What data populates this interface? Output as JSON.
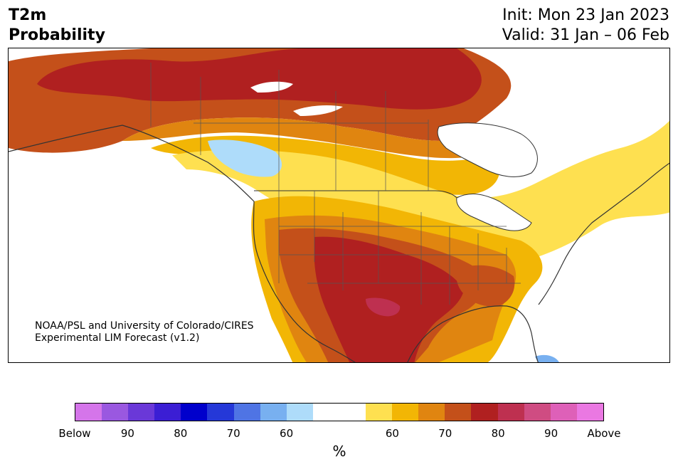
{
  "header": {
    "variable_line1": "T2m",
    "variable_line2": "Probability",
    "init": "Init: Mon 23 Jan 2023",
    "valid": "Valid: 31 Jan – 06 Feb"
  },
  "credit": {
    "line1": "NOAA/PSL and University of Colorado/CIRES",
    "line2": "Experimental LIM Forecast (v1.2)"
  },
  "colorbar": {
    "colors": [
      "#d575ea",
      "#9a58e0",
      "#6a38d8",
      "#3b1ed4",
      "#0000cc",
      "#2538d8",
      "#4f74e4",
      "#78b0f0",
      "#aedcfa",
      "#ffffff",
      "#ffffff",
      "#fee050",
      "#f2b605",
      "#e08510",
      "#c4501a",
      "#b02020",
      "#be3050",
      "#cf4c82",
      "#de60b8",
      "#ea78e2"
    ],
    "labels": [
      "Below",
      "90",
      "80",
      "70",
      "60",
      "60",
      "70",
      "80",
      "90",
      "Above"
    ],
    "unit": "%"
  },
  "legend_categories": {
    "below": "Below",
    "above": "Above"
  }
}
